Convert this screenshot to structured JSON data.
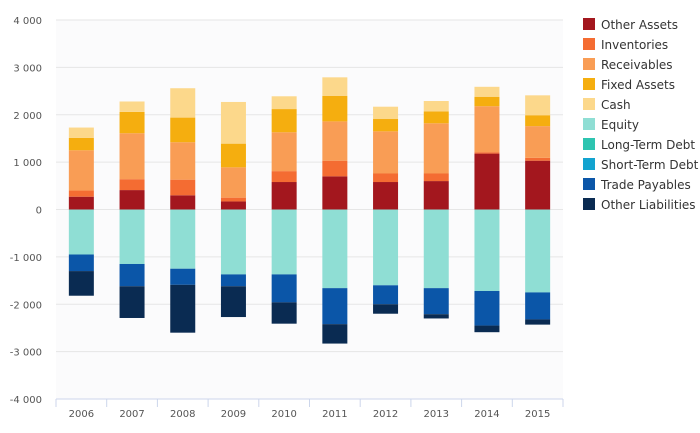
{
  "chart_data": {
    "type": "bar",
    "stacked": true,
    "categories": [
      "2006",
      "2007",
      "2008",
      "2009",
      "2010",
      "2011",
      "2012",
      "2013",
      "2014",
      "2015"
    ],
    "ylim": [
      -4000,
      4000
    ],
    "yticks": [
      4000,
      3000,
      2000,
      1000,
      0,
      -1000,
      -2000,
      -3000,
      -4000
    ],
    "ytick_labels": [
      "4 000",
      "3 000",
      "2 000",
      "1 000",
      "0",
      "-1 000",
      "-2 000",
      "-3 000",
      "-4 000"
    ],
    "grid": true,
    "legend_position": "right",
    "series": [
      {
        "name": "Other Assets",
        "color": "#a3171e",
        "values": [
          270,
          410,
          300,
          170,
          580,
          700,
          580,
          600,
          1180,
          1030
        ]
      },
      {
        "name": "Inventories",
        "color": "#f46c32",
        "values": [
          130,
          230,
          330,
          80,
          230,
          330,
          180,
          160,
          30,
          60
        ]
      },
      {
        "name": "Receivables",
        "color": "#f99d55",
        "values": [
          850,
          970,
          790,
          640,
          820,
          830,
          890,
          1060,
          970,
          670
        ]
      },
      {
        "name": "Fixed Assets",
        "color": "#f5ae0f",
        "values": [
          260,
          450,
          520,
          500,
          490,
          540,
          260,
          250,
          200,
          230
        ]
      },
      {
        "name": "Cash",
        "color": "#fcd88b",
        "values": [
          220,
          220,
          620,
          880,
          270,
          390,
          260,
          220,
          210,
          420
        ]
      },
      {
        "name": "Equity",
        "color": "#8fded4",
        "values": [
          -950,
          -1150,
          -1250,
          -1370,
          -1370,
          -1660,
          -1600,
          -1660,
          -1720,
          -1750
        ]
      },
      {
        "name": "Long-Term Debt",
        "color": "#2ec4b0",
        "values": [
          0,
          0,
          0,
          0,
          0,
          0,
          0,
          0,
          0,
          0
        ]
      },
      {
        "name": "Short-Term Debt",
        "color": "#13a3cf",
        "values": [
          0,
          0,
          0,
          0,
          0,
          0,
          0,
          0,
          0,
          0
        ]
      },
      {
        "name": "Trade Payables",
        "color": "#0b56a8",
        "values": [
          -350,
          -470,
          -340,
          -250,
          -590,
          -760,
          -400,
          -550,
          -730,
          -570
        ]
      },
      {
        "name": "Other Liabilities",
        "color": "#0a2b52",
        "values": [
          -520,
          -670,
          -1010,
          -650,
          -450,
          -410,
          -200,
          -90,
          -140,
          -110
        ]
      }
    ]
  }
}
